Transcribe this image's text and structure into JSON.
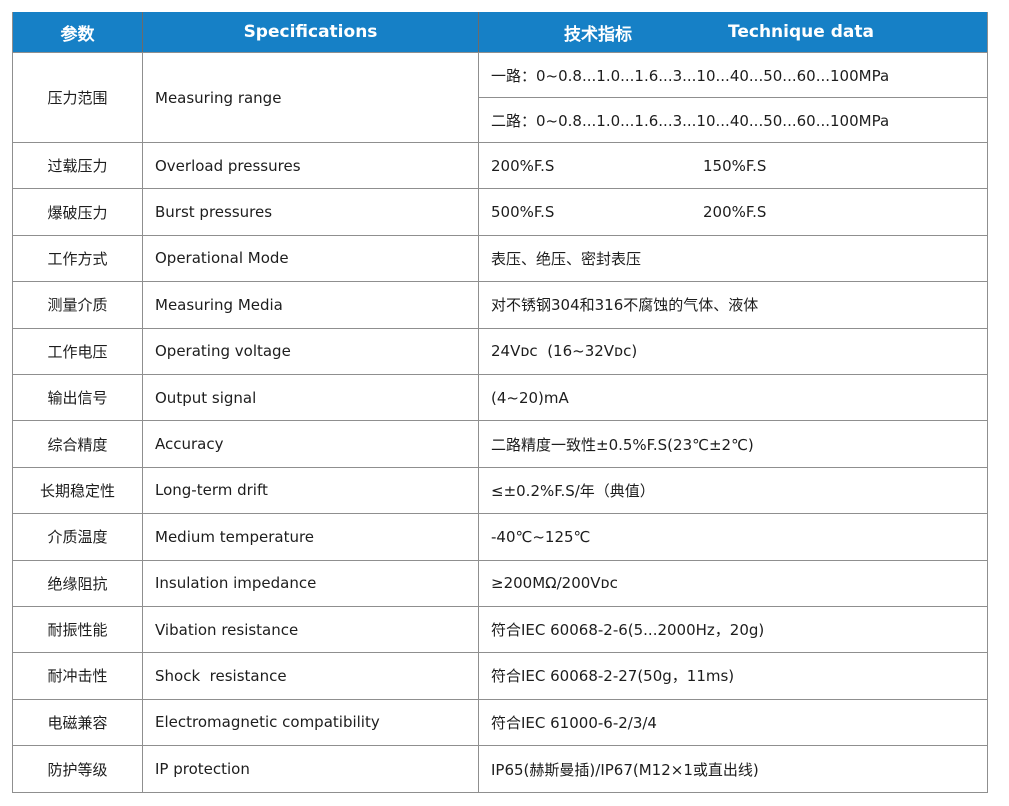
{
  "colors": {
    "header_background": "#1680c6",
    "header_text": "#ffffff",
    "border": "#8f8f8f",
    "body_text": "#1d1d1d"
  },
  "header": {
    "col1": "参数",
    "col2": "Specifications",
    "col3_cn": "技术指标",
    "col3_en": "Technique data"
  },
  "pressure_range": {
    "param": "压力范围",
    "spec": "Measuring range",
    "line1": "一路：0~0.8...1.0...1.6...3...10...40...50...60...100MPa",
    "line2": "二路：0~0.8...1.0...1.6...3...10...40...50...60...100MPa"
  },
  "rows": [
    {
      "param": "过载压力",
      "spec": "Overload pressures",
      "value": "200%F.S",
      "value2": "150%F.S"
    },
    {
      "param": "爆破压力",
      "spec": "Burst pressures",
      "value": "500%F.S",
      "value2": "200%F.S"
    },
    {
      "param": "工作方式",
      "spec": "Operational Mode",
      "value": "表压、绝压、密封表压"
    },
    {
      "param": "测量介质",
      "spec": "Measuring Media",
      "value": "对不锈钢304和316不腐蚀的气体、液体"
    },
    {
      "param": "工作电压",
      "spec": "Operating voltage",
      "value": "24Vᴅᴄ  (16~32Vᴅᴄ)"
    },
    {
      "param": "输出信号",
      "spec": "Output signal",
      "value": "(4~20)mA"
    },
    {
      "param": "综合精度",
      "spec": "Accuracy",
      "value": "二路精度一致性±0.5%F.S(23℃±2℃)"
    },
    {
      "param": "长期稳定性",
      "spec": "Long-term drift",
      "value": "≤±0.2%F.S/年（典值）"
    },
    {
      "param": "介质温度",
      "spec": "Medium temperature",
      "value": "-40℃~125℃"
    },
    {
      "param": "绝缘阻抗",
      "spec": "Insulation impedance",
      "value": "≥200MΩ/200Vᴅᴄ"
    },
    {
      "param": "耐振性能",
      "spec": "Vibation resistance",
      "value": "符合IEC 60068-2-6(5...2000Hz，20g)"
    },
    {
      "param": "耐冲击性",
      "spec": "Shock  resistance",
      "value": "符合IEC 60068-2-27(50g，11ms)"
    },
    {
      "param": "电磁兼容",
      "spec": "Electromagnetic compatibility",
      "value": "符合IEC 61000-6-2/3/4"
    },
    {
      "param": "防护等级",
      "spec": "IP protection",
      "value": "IP65(赫斯曼插)/IP67(M12×1或直出线)"
    }
  ]
}
